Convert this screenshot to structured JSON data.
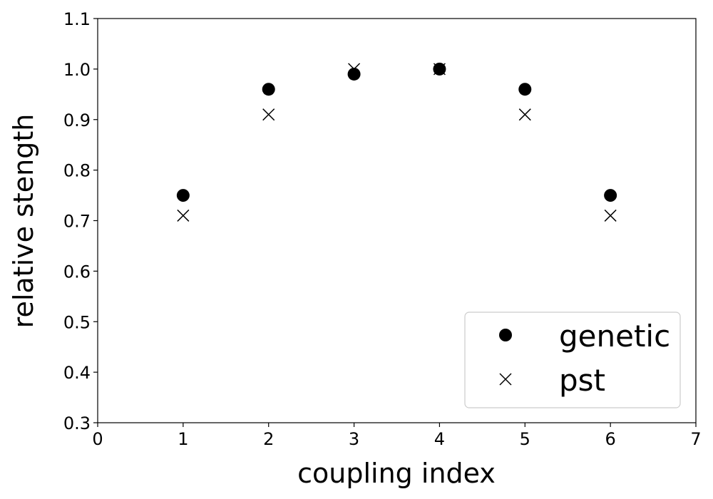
{
  "chart_data": {
    "type": "scatter",
    "title": "",
    "xlabel": "coupling index",
    "ylabel": "relative stength",
    "xlim": [
      0,
      7
    ],
    "ylim": [
      0.3,
      1.1
    ],
    "xticks": [
      "0",
      "1",
      "2",
      "3",
      "4",
      "5",
      "6",
      "7"
    ],
    "yticks": [
      "0.3",
      "0.4",
      "0.5",
      "0.6",
      "0.7",
      "0.8",
      "0.9",
      "1.0",
      "1.1"
    ],
    "grid": false,
    "legend_position": "bottom-right",
    "series": [
      {
        "name": "genetic",
        "marker": "circle",
        "color": "#000000",
        "x": [
          1,
          2,
          3,
          4,
          5,
          6
        ],
        "y": [
          0.75,
          0.96,
          0.99,
          1.0,
          0.96,
          0.75
        ]
      },
      {
        "name": "pst",
        "marker": "x",
        "color": "#000000",
        "x": [
          1,
          2,
          3,
          4,
          5,
          6
        ],
        "y": [
          0.71,
          0.91,
          1.0,
          1.0,
          0.91,
          0.71
        ]
      }
    ]
  }
}
